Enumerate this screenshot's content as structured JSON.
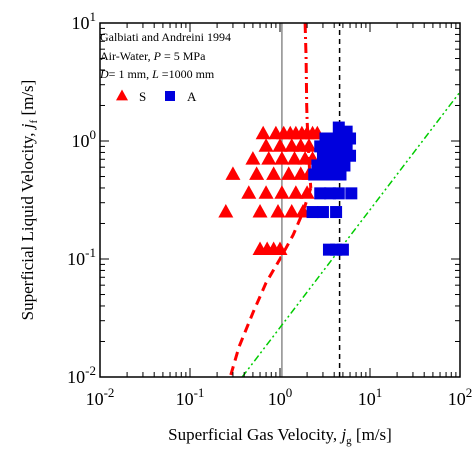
{
  "chart_data": {
    "type": "scatter",
    "xscale": "log",
    "yscale": "log",
    "xlim": [
      0.01,
      100
    ],
    "ylim": [
      0.01,
      10
    ],
    "x_ticks": [
      {
        "value": 0.01,
        "mantissa": "10",
        "exp": "-2"
      },
      {
        "value": 0.1,
        "mantissa": "10",
        "exp": "-1"
      },
      {
        "value": 1,
        "mantissa": "10",
        "exp": "0"
      },
      {
        "value": 10,
        "mantissa": "10",
        "exp": "1"
      },
      {
        "value": 100,
        "mantissa": "10",
        "exp": "2"
      }
    ],
    "y_ticks": [
      {
        "value": 0.01,
        "mantissa": "10",
        "exp": "-2"
      },
      {
        "value": 0.1,
        "mantissa": "10",
        "exp": "-1"
      },
      {
        "value": 1,
        "mantissa": "10",
        "exp": "0"
      },
      {
        "value": 10,
        "mantissa": "10",
        "exp": "1"
      }
    ],
    "xlabel": {
      "text": "Superficial Gas Velocity, ",
      "var": "j",
      "sub": "g",
      "unit": " [m/s]"
    },
    "ylabel": {
      "text": "Superficial Liquid Velocity, ",
      "var": "j",
      "sub": "f",
      "unit": " [m/s]"
    },
    "annotation_lines": [
      "Galbiati and Andreini 1994",
      "Air-Water, P = 5 MPa",
      "D= 1 mm, L =1000 mm"
    ],
    "legend": [
      {
        "label": "S",
        "marker": "triangle",
        "color": "#ff0000"
      },
      {
        "label": "A",
        "marker": "square",
        "color": "#0000dd"
      }
    ],
    "series": [
      {
        "name": "S",
        "marker": "triangle",
        "color": "#ff0000",
        "points": [
          [
            0.65,
            1.15
          ],
          [
            0.9,
            1.15
          ],
          [
            1.1,
            1.15
          ],
          [
            1.3,
            1.15
          ],
          [
            1.5,
            1.15
          ],
          [
            1.75,
            1.15
          ],
          [
            2.0,
            1.15
          ],
          [
            2.3,
            1.15
          ],
          [
            2.6,
            1.15
          ],
          [
            0.7,
            0.9
          ],
          [
            1.0,
            0.9
          ],
          [
            1.35,
            0.9
          ],
          [
            1.7,
            0.9
          ],
          [
            2.1,
            0.9
          ],
          [
            0.5,
            0.7
          ],
          [
            0.75,
            0.7
          ],
          [
            1.05,
            0.7
          ],
          [
            1.45,
            0.7
          ],
          [
            1.9,
            0.7
          ],
          [
            2.3,
            0.7
          ],
          [
            0.3,
            0.52
          ],
          [
            0.55,
            0.52
          ],
          [
            0.85,
            0.52
          ],
          [
            1.25,
            0.52
          ],
          [
            1.7,
            0.52
          ],
          [
            2.1,
            0.52
          ],
          [
            0.45,
            0.36
          ],
          [
            0.7,
            0.36
          ],
          [
            1.05,
            0.36
          ],
          [
            1.5,
            0.36
          ],
          [
            2.0,
            0.36
          ],
          [
            0.25,
            0.25
          ],
          [
            0.6,
            0.25
          ],
          [
            0.95,
            0.25
          ],
          [
            1.35,
            0.25
          ],
          [
            1.8,
            0.25
          ],
          [
            0.6,
            0.12
          ],
          [
            0.72,
            0.12
          ],
          [
            0.85,
            0.12
          ],
          [
            1.0,
            0.12
          ]
        ]
      },
      {
        "name": "A",
        "marker": "square",
        "color": "#0000dd",
        "points": [
          [
            4.5,
            1.3
          ],
          [
            5.5,
            1.2
          ],
          [
            3.2,
            1.05
          ],
          [
            4.0,
            1.05
          ],
          [
            5.0,
            1.05
          ],
          [
            6.0,
            1.05
          ],
          [
            2.8,
            0.9
          ],
          [
            3.5,
            0.9
          ],
          [
            4.5,
            0.9
          ],
          [
            5.5,
            0.9
          ],
          [
            3.0,
            0.75
          ],
          [
            3.8,
            0.75
          ],
          [
            4.8,
            0.75
          ],
          [
            6.0,
            0.75
          ],
          [
            2.6,
            0.62
          ],
          [
            3.3,
            0.62
          ],
          [
            4.1,
            0.62
          ],
          [
            5.2,
            0.62
          ],
          [
            2.4,
            0.52
          ],
          [
            3.0,
            0.52
          ],
          [
            3.8,
            0.52
          ],
          [
            4.7,
            0.52
          ],
          [
            2.8,
            0.36
          ],
          [
            3.6,
            0.36
          ],
          [
            4.5,
            0.36
          ],
          [
            6.2,
            0.36
          ],
          [
            2.3,
            0.25
          ],
          [
            3.0,
            0.25
          ],
          [
            4.2,
            0.25
          ],
          [
            3.5,
            0.12
          ],
          [
            4.2,
            0.12
          ],
          [
            5.0,
            0.12
          ]
        ]
      }
    ],
    "lines": [
      {
        "id": "red-dashdot-transition",
        "color": "#ff0000",
        "dash": "10 4 2 4",
        "width": 3,
        "points": [
          [
            1.9,
            10
          ],
          [
            1.95,
            5
          ],
          [
            1.98,
            2
          ],
          [
            2.0,
            1.5
          ],
          [
            2.05,
            1.0
          ],
          [
            2.1,
            0.7
          ],
          [
            2.15,
            0.5
          ],
          [
            2.2,
            0.4
          ]
        ]
      },
      {
        "id": "red-dashed-transition",
        "color": "#ff0000",
        "dash": "9 6",
        "width": 3,
        "points": [
          [
            2.2,
            0.4
          ],
          [
            1.8,
            0.25
          ],
          [
            1.4,
            0.16
          ],
          [
            1.0,
            0.1
          ],
          [
            0.7,
            0.063
          ],
          [
            0.5,
            0.035
          ],
          [
            0.35,
            0.018
          ],
          [
            0.28,
            0.01
          ]
        ]
      },
      {
        "id": "gray-vertical",
        "color": "#8c8c8c",
        "dash": "",
        "width": 1.5,
        "points": [
          [
            1.05,
            0.01
          ],
          [
            1.05,
            10
          ]
        ]
      },
      {
        "id": "black-dashed-vertical",
        "color": "#000000",
        "dash": "5 4",
        "width": 1.5,
        "points": [
          [
            4.6,
            0.01
          ],
          [
            4.6,
            10
          ]
        ]
      },
      {
        "id": "green-dashdotdot",
        "color": "#00cc00",
        "dash": "7 3 2 3 2 3",
        "width": 1.5,
        "points": [
          [
            0.38,
            0.01
          ],
          [
            100,
            2.6
          ]
        ]
      }
    ]
  }
}
